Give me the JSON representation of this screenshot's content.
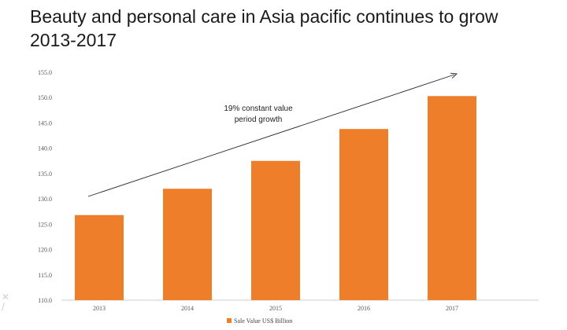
{
  "header": {
    "title_line1": "Beauty and personal care in Asia pacific continues to grow",
    "title_line2": "2013-2017"
  },
  "chart_data": {
    "type": "bar",
    "categories": [
      "2013",
      "2014",
      "2015",
      "2016",
      "2017"
    ],
    "series": [
      {
        "name": "Sale Value US$ Billion",
        "values": [
          126.8,
          132.0,
          137.5,
          143.8,
          150.3
        ]
      }
    ],
    "ylim": [
      110.0,
      155.0
    ],
    "yticks": [
      "110.0",
      "115.0",
      "120.0",
      "125.0",
      "130.0",
      "135.0",
      "140.0",
      "145.0",
      "150.0",
      "155.0"
    ],
    "grid": false,
    "legend_position": "bottom",
    "annotation": {
      "line1": "19% constant value",
      "line2": "period growth"
    },
    "colors": {
      "bar": "#EE7E2A",
      "axis": "#cccccc",
      "arrow": "#222222"
    }
  }
}
